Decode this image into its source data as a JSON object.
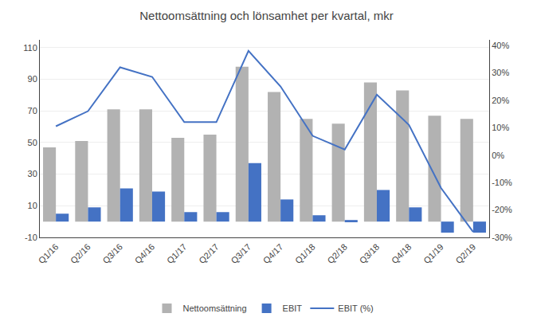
{
  "chart_data": {
    "type": "bar",
    "title": "Nettoomsättning och lönsamhet per kvartal, mkr",
    "categories": [
      "Q1/16",
      "Q2/16",
      "Q3/16",
      "Q4/16",
      "Q1/17",
      "Q2/17",
      "Q3/17",
      "Q4/17",
      "Q1/18",
      "Q2/18",
      "Q3/18",
      "Q4/18",
      "Q1/19",
      "Q2/19"
    ],
    "series": [
      {
        "name": "Nettoomsättning",
        "type": "bar",
        "color": "#b2b2b2",
        "values": [
          47,
          51,
          71,
          71,
          53,
          55,
          98,
          82,
          65,
          62,
          88,
          83,
          67,
          65
        ]
      },
      {
        "name": "EBIT",
        "type": "bar",
        "color": "#4472c4",
        "values": [
          5,
          9,
          21,
          19,
          6,
          6,
          37,
          14,
          4,
          1,
          20,
          9,
          -7,
          -7
        ]
      },
      {
        "name": "EBIT (%)",
        "type": "line",
        "color": "#4472c4",
        "axis": "y2",
        "values": [
          10.5,
          16,
          32,
          28.5,
          12,
          12,
          38,
          25,
          7,
          2,
          22,
          11,
          -12,
          -28
        ]
      }
    ],
    "ylim": [
      -10,
      115
    ],
    "yticks": [
      -10,
      10,
      30,
      50,
      70,
      90,
      110
    ],
    "y2lim": [
      -30,
      42
    ],
    "y2ticks": [
      {
        "value": -30,
        "label": "-30%"
      },
      {
        "value": -20,
        "label": "-20%"
      },
      {
        "value": -10,
        "label": "-10%"
      },
      {
        "value": 0,
        "label": "0%"
      },
      {
        "value": 10,
        "label": "10%"
      },
      {
        "value": 20,
        "label": "20%"
      },
      {
        "value": 30,
        "label": "30%"
      },
      {
        "value": 40,
        "label": "40%"
      }
    ],
    "grid": true,
    "legend": "bottom"
  }
}
